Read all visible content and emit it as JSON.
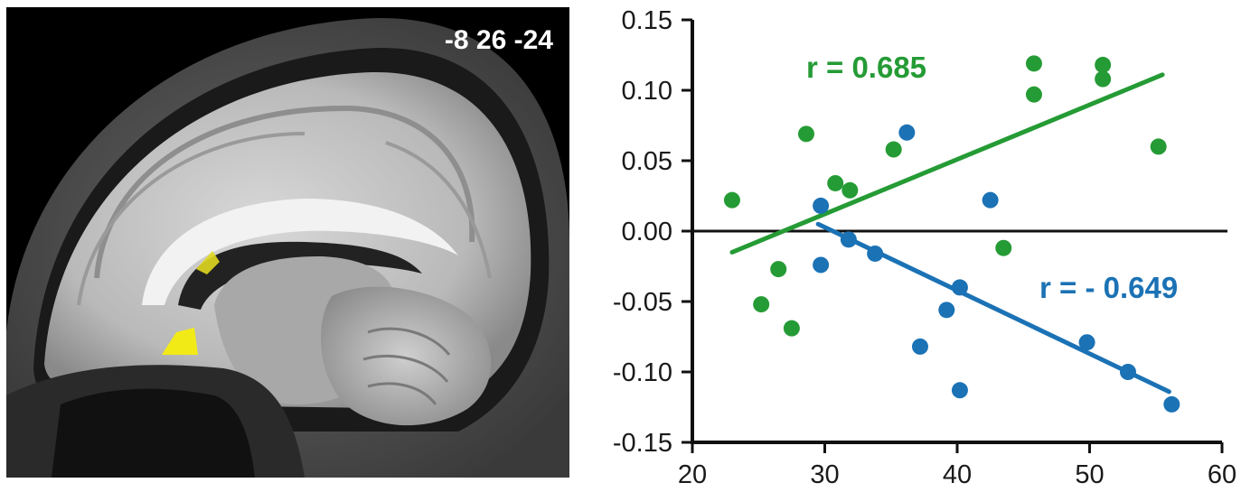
{
  "brain_panel": {
    "coordinates": "-8 26 -24",
    "highlight_color": "#f2ea17"
  },
  "chart_data": {
    "type": "scatter",
    "xlim": [
      20,
      60
    ],
    "ylim": [
      -0.15,
      0.15
    ],
    "xticks": [
      "20",
      "30",
      "40",
      "50",
      "60"
    ],
    "yticks": [
      "0.15",
      "0.10",
      "0.05",
      "0.00",
      "-0.05",
      "-0.10",
      "-0.15"
    ],
    "zero_line": true,
    "series": [
      {
        "color": "#259b35",
        "annotation": "r = 0.685",
        "fit": {
          "x": [
            23.0,
            55.5
          ],
          "y": [
            -0.015,
            0.111
          ]
        },
        "points": [
          [
            23.0,
            0.022
          ],
          [
            25.2,
            -0.052
          ],
          [
            26.5,
            -0.027
          ],
          [
            27.5,
            -0.069
          ],
          [
            28.6,
            0.069
          ],
          [
            30.8,
            0.034
          ],
          [
            31.9,
            0.029
          ],
          [
            35.2,
            0.058
          ],
          [
            43.5,
            -0.012
          ],
          [
            45.8,
            0.119
          ],
          [
            45.8,
            0.097
          ],
          [
            51.0,
            0.118
          ],
          [
            51.0,
            0.108
          ],
          [
            55.2,
            0.06
          ]
        ]
      },
      {
        "color": "#1b72b5",
        "annotation": "r = - 0.649",
        "fit": {
          "x": [
            29.5,
            56.0
          ],
          "y": [
            0.005,
            -0.114
          ]
        },
        "points": [
          [
            29.7,
            0.018
          ],
          [
            29.7,
            -0.024
          ],
          [
            31.8,
            -0.006
          ],
          [
            33.8,
            -0.016
          ],
          [
            36.2,
            0.07
          ],
          [
            37.2,
            -0.082
          ],
          [
            39.2,
            -0.056
          ],
          [
            40.2,
            -0.04
          ],
          [
            40.2,
            -0.113
          ],
          [
            42.5,
            0.022
          ],
          [
            49.8,
            -0.079
          ],
          [
            52.9,
            -0.1
          ],
          [
            56.2,
            -0.123
          ]
        ]
      }
    ]
  }
}
